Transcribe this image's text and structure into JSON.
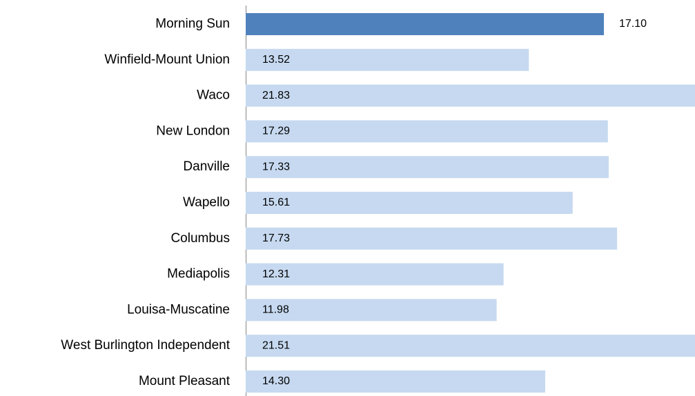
{
  "chart_data": {
    "type": "barh",
    "categories": [
      "Morning Sun",
      "Winfield-Mount Union",
      "Waco",
      "New London",
      "Danville",
      "Wapello",
      "Columbus",
      "Mediapolis",
      "Louisa-Muscatine",
      "West Burlington Independent",
      "Mount Pleasant"
    ],
    "values": [
      17.1,
      13.52,
      21.83,
      17.29,
      17.33,
      15.61,
      17.73,
      12.31,
      11.98,
      21.51,
      14.3
    ],
    "value_labels": [
      "17.10",
      "13.52",
      "21.83",
      "17.29",
      "17.33",
      "15.61",
      "17.73",
      "12.31",
      "11.98",
      "21.51",
      "14.30"
    ],
    "colors": [
      "#4f81bd",
      "#c6d9f0",
      "#c6d9f0",
      "#c6d9f0",
      "#c6d9f0",
      "#c6d9f0",
      "#c6d9f0",
      "#c6d9f0",
      "#c6d9f0",
      "#c6d9f0",
      "#c6d9f0"
    ],
    "xlim": [
      0,
      21.45
    ]
  }
}
